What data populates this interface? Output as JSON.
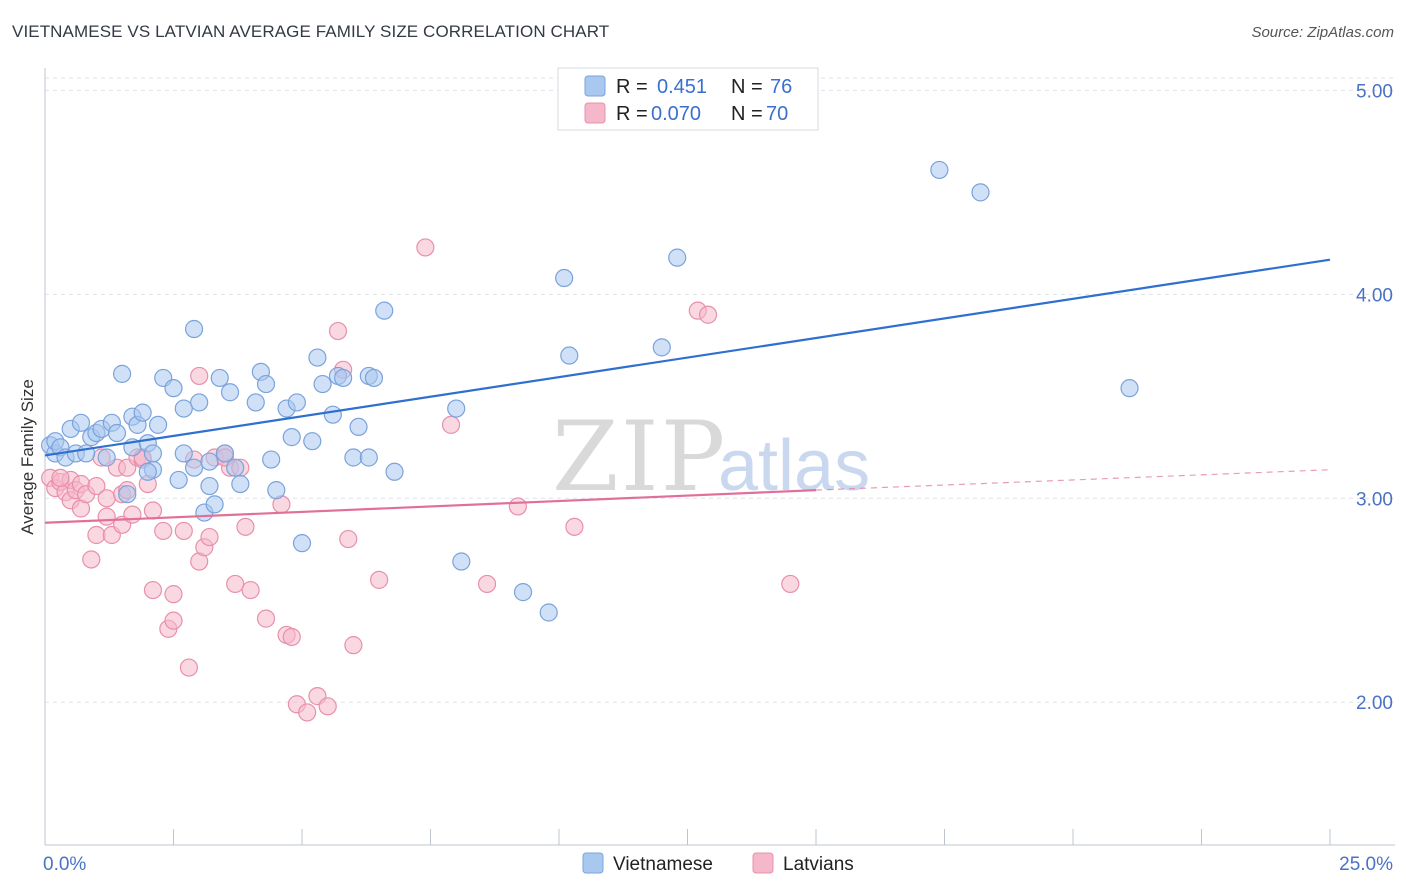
{
  "title": "VIETNAMESE VS LATVIAN AVERAGE FAMILY SIZE CORRELATION CHART",
  "source": "Source: ZipAtlas.com",
  "watermark": {
    "zip": "ZIP",
    "atlas": "atlas"
  },
  "legend": {
    "rows": [
      {
        "r_label": "R =",
        "r_value": "0.451",
        "n_label": "N =",
        "n_value": "76"
      },
      {
        "r_label": "R =",
        "r_value": "0.070",
        "n_label": "N =",
        "n_value": "70"
      }
    ]
  },
  "bottom_legend": [
    "Vietnamese",
    "Latvians"
  ],
  "colors": {
    "blue_fill": "#a9c8f0",
    "blue_stroke": "#7aa3dc",
    "blue_line": "#2f6fd0",
    "pink_fill": "#f5b8cb",
    "pink_stroke": "#e890ab",
    "pink_line": "#e0709a",
    "grid": "#dde3ea",
    "axis_label": "#4a72c4"
  },
  "chart_data": {
    "type": "scatter",
    "ylabel": "Average Family Size",
    "xlim": [
      0,
      25
    ],
    "ylim": [
      1.3,
      5.1
    ],
    "y_ticks": [
      2.0,
      3.0,
      4.0,
      5.0
    ],
    "y_tick_labels": [
      "2.00",
      "3.00",
      "4.00",
      "5.00"
    ],
    "x_tick_labels": [
      "0.0%",
      "25.0%"
    ],
    "series": [
      {
        "name": "Vietnamese",
        "trendline": {
          "x": [
            0,
            25
          ],
          "y": [
            3.21,
            4.17
          ]
        },
        "points": [
          [
            0.1,
            3.26
          ],
          [
            0.2,
            3.22
          ],
          [
            0.2,
            3.28
          ],
          [
            0.3,
            3.25
          ],
          [
            0.4,
            3.2
          ],
          [
            0.5,
            3.34
          ],
          [
            0.6,
            3.22
          ],
          [
            0.7,
            3.37
          ],
          [
            0.8,
            3.22
          ],
          [
            0.9,
            3.3
          ],
          [
            1.0,
            3.32
          ],
          [
            1.1,
            3.34
          ],
          [
            1.2,
            3.2
          ],
          [
            1.3,
            3.37
          ],
          [
            1.4,
            3.32
          ],
          [
            1.5,
            3.61
          ],
          [
            1.6,
            3.02
          ],
          [
            1.7,
            3.25
          ],
          [
            1.7,
            3.4
          ],
          [
            1.8,
            3.36
          ],
          [
            1.9,
            3.42
          ],
          [
            2.0,
            3.27
          ],
          [
            2.1,
            3.14
          ],
          [
            2.1,
            3.22
          ],
          [
            2.2,
            3.36
          ],
          [
            2.3,
            3.59
          ],
          [
            2.5,
            3.54
          ],
          [
            2.6,
            3.09
          ],
          [
            2.7,
            3.22
          ],
          [
            2.7,
            3.44
          ],
          [
            2.9,
            3.15
          ],
          [
            2.9,
            3.83
          ],
          [
            3.0,
            3.47
          ],
          [
            3.1,
            2.93
          ],
          [
            3.2,
            3.18
          ],
          [
            3.2,
            3.06
          ],
          [
            3.3,
            2.97
          ],
          [
            3.4,
            3.59
          ],
          [
            3.5,
            3.22
          ],
          [
            3.6,
            3.52
          ],
          [
            3.7,
            3.15
          ],
          [
            3.8,
            3.07
          ],
          [
            4.1,
            3.47
          ],
          [
            4.2,
            3.62
          ],
          [
            4.3,
            3.56
          ],
          [
            4.4,
            3.19
          ],
          [
            4.5,
            3.04
          ],
          [
            4.7,
            3.44
          ],
          [
            4.8,
            3.3
          ],
          [
            4.9,
            3.47
          ],
          [
            5.0,
            2.78
          ],
          [
            5.2,
            3.28
          ],
          [
            5.3,
            3.69
          ],
          [
            5.4,
            3.56
          ],
          [
            5.6,
            3.41
          ],
          [
            5.7,
            3.6
          ],
          [
            5.8,
            3.59
          ],
          [
            6.0,
            3.2
          ],
          [
            6.1,
            3.35
          ],
          [
            6.3,
            3.6
          ],
          [
            6.4,
            3.59
          ],
          [
            6.6,
            3.92
          ],
          [
            6.8,
            3.13
          ],
          [
            8.0,
            3.44
          ],
          [
            8.1,
            2.69
          ],
          [
            9.3,
            2.54
          ],
          [
            9.8,
            2.44
          ],
          [
            10.1,
            4.08
          ],
          [
            10.2,
            3.7
          ],
          [
            12.0,
            3.74
          ],
          [
            12.3,
            4.18
          ],
          [
            17.4,
            4.61
          ],
          [
            18.2,
            4.5
          ],
          [
            21.1,
            3.54
          ],
          [
            6.3,
            3.2
          ],
          [
            2.0,
            3.13
          ]
        ]
      },
      {
        "name": "Latvians",
        "trendline": {
          "x": [
            0,
            15
          ],
          "y": [
            2.88,
            3.04
          ]
        },
        "trendline_dashed": {
          "x": [
            15,
            25
          ],
          "y": [
            3.04,
            3.14
          ]
        },
        "points": [
          [
            0.1,
            3.1
          ],
          [
            0.2,
            3.05
          ],
          [
            0.3,
            3.08
          ],
          [
            0.4,
            3.03
          ],
          [
            0.5,
            3.09
          ],
          [
            0.5,
            2.99
          ],
          [
            0.6,
            3.04
          ],
          [
            0.7,
            3.07
          ],
          [
            0.7,
            2.95
          ],
          [
            0.8,
            3.02
          ],
          [
            0.9,
            2.7
          ],
          [
            1.0,
            2.82
          ],
          [
            1.0,
            3.06
          ],
          [
            1.1,
            3.2
          ],
          [
            1.2,
            3.0
          ],
          [
            1.2,
            2.91
          ],
          [
            1.3,
            2.82
          ],
          [
            1.4,
            3.15
          ],
          [
            1.5,
            3.02
          ],
          [
            1.5,
            2.87
          ],
          [
            1.6,
            3.04
          ],
          [
            1.6,
            3.15
          ],
          [
            1.7,
            2.92
          ],
          [
            1.8,
            3.2
          ],
          [
            1.9,
            3.19
          ],
          [
            2.0,
            3.07
          ],
          [
            2.1,
            2.94
          ],
          [
            2.1,
            2.55
          ],
          [
            2.3,
            2.84
          ],
          [
            2.4,
            2.36
          ],
          [
            2.5,
            2.53
          ],
          [
            2.5,
            2.4
          ],
          [
            2.7,
            2.84
          ],
          [
            2.8,
            2.17
          ],
          [
            2.9,
            3.19
          ],
          [
            3.0,
            2.69
          ],
          [
            3.0,
            3.6
          ],
          [
            3.1,
            2.76
          ],
          [
            3.2,
            2.81
          ],
          [
            3.3,
            3.2
          ],
          [
            3.5,
            3.22
          ],
          [
            3.6,
            3.15
          ],
          [
            3.7,
            2.58
          ],
          [
            3.8,
            3.15
          ],
          [
            3.9,
            2.86
          ],
          [
            4.0,
            2.55
          ],
          [
            4.3,
            2.41
          ],
          [
            4.6,
            2.97
          ],
          [
            4.7,
            2.33
          ],
          [
            4.8,
            2.32
          ],
          [
            4.9,
            1.99
          ],
          [
            5.1,
            1.95
          ],
          [
            5.3,
            2.03
          ],
          [
            5.5,
            1.98
          ],
          [
            5.7,
            3.82
          ],
          [
            5.8,
            3.63
          ],
          [
            5.9,
            2.8
          ],
          [
            6.0,
            2.28
          ],
          [
            6.5,
            2.6
          ],
          [
            7.4,
            4.23
          ],
          [
            7.9,
            3.36
          ],
          [
            8.6,
            2.58
          ],
          [
            9.2,
            2.96
          ],
          [
            10.3,
            2.86
          ],
          [
            12.7,
            3.92
          ],
          [
            12.9,
            3.9
          ],
          [
            14.5,
            2.58
          ],
          [
            3.5,
            3.2
          ],
          [
            1.9,
            3.2
          ],
          [
            0.3,
            3.1
          ]
        ]
      }
    ]
  }
}
